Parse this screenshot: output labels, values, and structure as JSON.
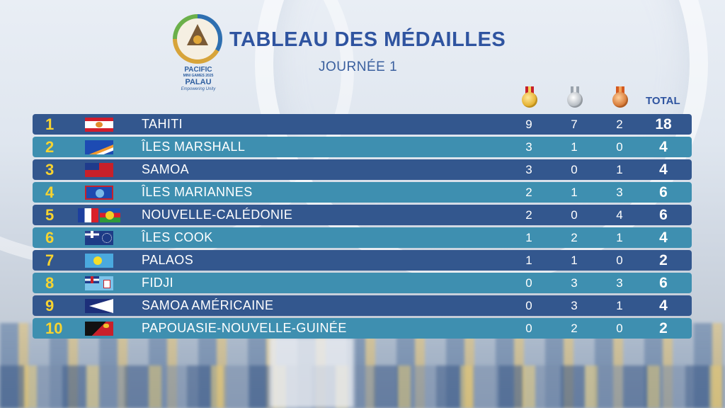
{
  "header": {
    "title": "TABLEAU DES MÉDAILLES",
    "subtitle": "JOURNÉE 1",
    "logo": {
      "line1": "PACIFIC",
      "line2": "MINI GAMES 2025",
      "line3": "PALAU",
      "line4": "Empowering Unity"
    }
  },
  "columns": {
    "gold_icon": "gold-medal",
    "silver_icon": "silver-medal",
    "bronze_icon": "bronze-medal",
    "total": "TOTAL"
  },
  "colors": {
    "row_dark": "#33578e",
    "row_light": "#3e8fb0",
    "rank": "#f7d330",
    "title": "#2f54a0"
  },
  "rows": [
    {
      "rank": "1",
      "country": "TAHITI",
      "gold": "9",
      "silver": "7",
      "bronze": "2",
      "total": "18"
    },
    {
      "rank": "2",
      "country": "ÎLES MARSHALL",
      "gold": "3",
      "silver": "1",
      "bronze": "0",
      "total": "4"
    },
    {
      "rank": "3",
      "country": "SAMOA",
      "gold": "3",
      "silver": "0",
      "bronze": "1",
      "total": "4"
    },
    {
      "rank": "4",
      "country": "ÎLES MARIANNES",
      "gold": "2",
      "silver": "1",
      "bronze": "3",
      "total": "6"
    },
    {
      "rank": "5",
      "country": "NOUVELLE-CALÉDONIE",
      "gold": "2",
      "silver": "0",
      "bronze": "4",
      "total": "6"
    },
    {
      "rank": "6",
      "country": "ÎLES COOK",
      "gold": "1",
      "silver": "2",
      "bronze": "1",
      "total": "4"
    },
    {
      "rank": "7",
      "country": "PALAOS",
      "gold": "1",
      "silver": "1",
      "bronze": "0",
      "total": "2"
    },
    {
      "rank": "8",
      "country": "FIDJI",
      "gold": "0",
      "silver": "3",
      "bronze": "3",
      "total": "6"
    },
    {
      "rank": "9",
      "country": "SAMOA AMÉRICAINE",
      "gold": "0",
      "silver": "3",
      "bronze": "1",
      "total": "4"
    },
    {
      "rank": "10",
      "country": "PAPOUASIE-NOUVELLE-GUINÉE",
      "gold": "0",
      "silver": "2",
      "bronze": "0",
      "total": "2"
    }
  ]
}
